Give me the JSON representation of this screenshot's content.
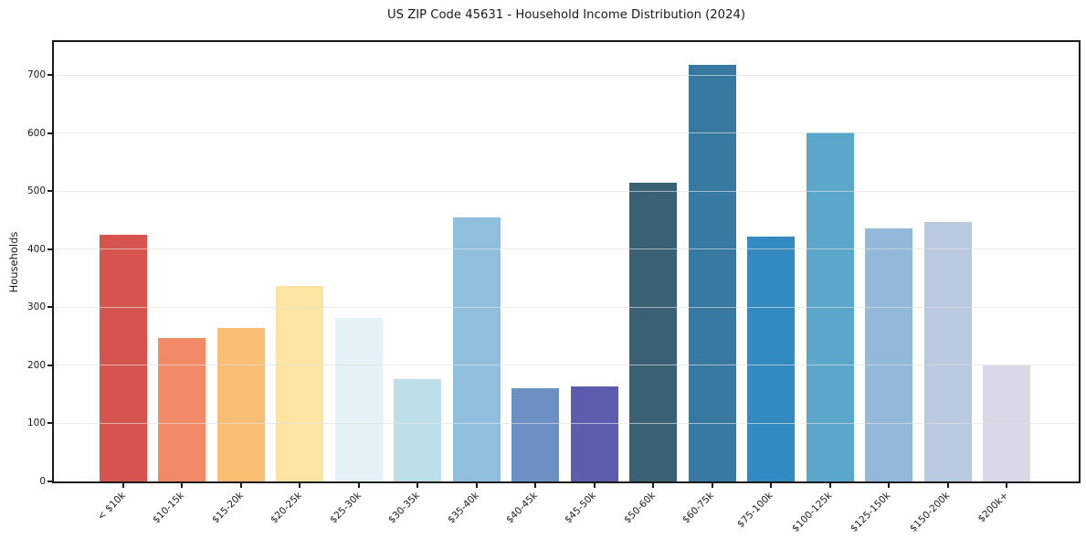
{
  "chart_data": {
    "type": "bar",
    "title": "US ZIP Code 45631 - Household Income Distribution (2024)",
    "xlabel": "",
    "ylabel": "Households",
    "categories": [
      "< $10k",
      "$10-15k",
      "$15-20k",
      "$20-25k",
      "$25-30k",
      "$30-35k",
      "$35-40k",
      "$40-45k",
      "$45-50k",
      "$50-60k",
      "$60-75k",
      "$75-100k",
      "$100-125k",
      "$125-150k",
      "$150-200k",
      "$200k+"
    ],
    "values": [
      425,
      247,
      264,
      337,
      282,
      177,
      455,
      160,
      163,
      515,
      718,
      422,
      602,
      436,
      447,
      200
    ],
    "bar_colors": [
      "#d6544f",
      "#f28a68",
      "#fabd74",
      "#fde5a1",
      "#e4f1f6",
      "#bedfe9",
      "#8fbfdc",
      "#6b90c3",
      "#5c5ead",
      "#3a6073",
      "#3779a1",
      "#338ac1",
      "#5ba7cb",
      "#92b9d9",
      "#b9c9df",
      "#d8d9e6"
    ],
    "yticks": [
      0,
      100,
      200,
      300,
      400,
      500,
      600,
      700
    ],
    "ylim": [
      0,
      757
    ],
    "grid": "horizontal",
    "legend": "none",
    "x_tick_rotation": 45,
    "spine_color": "#1a1a1a",
    "gridline_color": "#ebebeb",
    "background_color": "#ffffff"
  }
}
